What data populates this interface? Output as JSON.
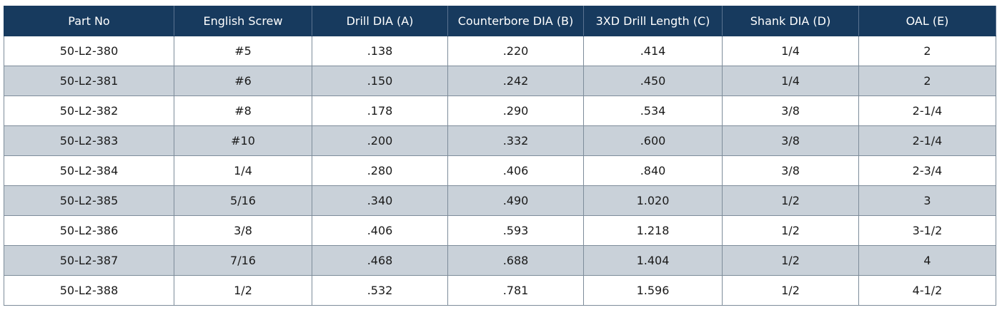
{
  "table": {
    "headers": [
      "Part No",
      "English Screw",
      "Drill DIA (A)",
      "Counterbore DIA (B)",
      "3XD Drill Length (C)",
      "Shank DIA (D)",
      "OAL (E)"
    ],
    "rows": [
      [
        "50-L2-380",
        "#5",
        ".138",
        ".220",
        ".414",
        "1/4",
        "2"
      ],
      [
        "50-L2-381",
        "#6",
        ".150",
        ".242",
        ".450",
        "1/4",
        "2"
      ],
      [
        "50-L2-382",
        "#8",
        ".178",
        ".290",
        ".534",
        "3/8",
        "2-1/4"
      ],
      [
        "50-L2-383",
        "#10",
        ".200",
        ".332",
        ".600",
        "3/8",
        "2-1/4"
      ],
      [
        "50-L2-384",
        "1/4",
        ".280",
        ".406",
        ".840",
        "3/8",
        "2-3/4"
      ],
      [
        "50-L2-385",
        "5/16",
        ".340",
        ".490",
        "1.020",
        "1/2",
        "3"
      ],
      [
        "50-L2-386",
        "3/8",
        ".406",
        ".593",
        "1.218",
        "1/2",
        "3-1/2"
      ],
      [
        "50-L2-387",
        "7/16",
        ".468",
        ".688",
        "1.404",
        "1/2",
        "4"
      ],
      [
        "50-L2-388",
        "1/2",
        ".532",
        ".781",
        "1.596",
        "1/2",
        "4-1/2"
      ]
    ]
  }
}
